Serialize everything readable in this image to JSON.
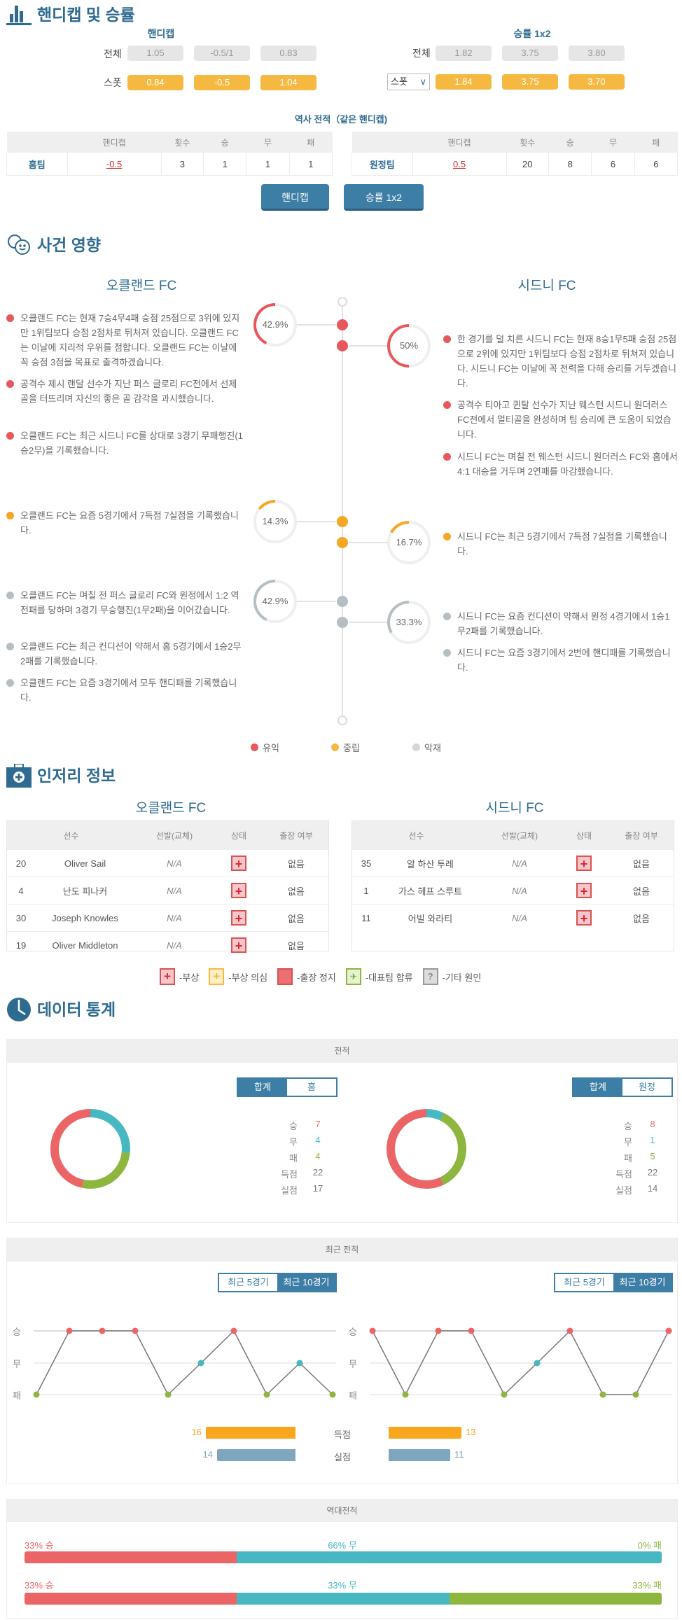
{
  "colors": {
    "accent": "#3d7ea6",
    "title": "#2e6b91",
    "positive": "#e8575a",
    "neutral": "#f5a623",
    "negative": "#b5bfc3",
    "win": "#ec6566",
    "draw": "#47b7c1",
    "loss": "#8db63e",
    "goals": "#f9a61f",
    "conceded": "#7ea7bf"
  },
  "handicap_section": {
    "title": "핸디캡 및 승률",
    "handicap": {
      "title": "핸디캡",
      "rows": [
        {
          "label": "전체",
          "values": [
            "1.05",
            "-0.5/1",
            "0.83"
          ]
        },
        {
          "label": "스폿",
          "values": [
            "0.84",
            "-0.5",
            "1.04"
          ]
        }
      ]
    },
    "odds": {
      "title": "승률 1x2",
      "rows": [
        {
          "label": "전체",
          "values": [
            "1.82",
            "3.75",
            "3.80"
          ]
        },
        {
          "label": "스폿",
          "values": [
            "1.84",
            "3.75",
            "3.70"
          ]
        }
      ]
    },
    "history": {
      "title": "역사 전적（같은 핸디캡)",
      "headers": [
        "",
        "핸디캡",
        "횟수",
        "승",
        "무",
        "패"
      ],
      "home": [
        "홈팀",
        "-0.5",
        "3",
        "1",
        "1",
        "1"
      ],
      "away": [
        "원정팀",
        "0.5",
        "20",
        "8",
        "6",
        "6"
      ]
    },
    "buttons": [
      "핸디캡",
      "승률 1x2"
    ]
  },
  "impact": {
    "title": "사건 영향",
    "home_team": "오클랜드 FC",
    "away_team": "시드니 FC",
    "groups": [
      {
        "type": "positive",
        "home": {
          "pct": "42.9%",
          "value": 0.429,
          "items": [
            "오클랜드 FC는 현재 7승4무4패 승점 25점으로 3위에 있지만 1위팀보다 승점 2점차로 뒤처져 있습니다. 오클랜드 FC는 이날에 지리적 우위를 점합니다. 오클랜드 FC는 이날에 꼭 승점 3점을 목표로 출격하겠습니다.",
            "공격수 제시 랜달 선수가 지난 퍼스 글로리 FC전에서 선제골을 터뜨리며 자신의 좋은 골 감각을 과시했습니다.",
            "오클랜드 FC는 최근 시드니 FC를 상대로 3경기 무패행진(1승2무)을 기록했습니다."
          ]
        },
        "away": {
          "pct": "50%",
          "value": 0.5,
          "items": [
            "한 경기를 덜 치른 시드니 FC는 현재 8승1무5패 승점 25점으로 2위에 있지만 1위팀보다 승점 2점차로 뒤쳐져 있습니다. 시드니 FC는 이날에 꼭 전력을 다해 승리를 거두겠습니다.",
            "공격수 티아고 퀸탈 선수가 지난 웨스턴 시드니 원더러스 FC전에서 멀티골을 완성하며 팀 승리에 큰 도움이 되었습니다.",
            "시드니 FC는 며칠 전 웨스턴 시드니 원더러스 FC와 홈에서 4:1 대승을 거두며 2연패를 마감했습니다."
          ]
        }
      },
      {
        "type": "neutral",
        "home": {
          "pct": "14.3%",
          "value": 0.143,
          "items": [
            "오클랜드 FC는 요즘 5경기에서 7득점 7실점을 기록했습니다."
          ]
        },
        "away": {
          "pct": "16.7%",
          "value": 0.167,
          "items": [
            "시드니 FC는 최근 5경기에서 7득점 7실점을 기록했습니다."
          ]
        }
      },
      {
        "type": "negative",
        "home": {
          "pct": "42.9%",
          "value": 0.429,
          "items": [
            "오클랜드 FC는 며칠 전 퍼스 글로리 FC와 원정에서 1:2 역전패를 당하며 3경기 무승행진(1무2패)을 이어갔습니다.",
            "오클랜드 FC는 최근 컨디션이 약해서 홈 5경기에서 1승2무2패를 기록했습니다.",
            "오클랜드 FC는 요즘 3경기에서 모두 핸디패를 기록했습니다."
          ]
        },
        "away": {
          "pct": "33.3%",
          "value": 0.333,
          "items": [
            "시드니 FC는 요즘 컨디션이 약해서 원정 4경기에서 1승1무2패를 기록했습니다.",
            "시드니 FC는 요즘 3경기에서 2번에 핸디패를 기록했습니다."
          ]
        }
      }
    ],
    "legend": [
      "유익",
      "중립",
      "악재"
    ]
  },
  "injury": {
    "title": "인저리 정보",
    "headers": [
      "선수",
      "선발(교체)",
      "상태",
      "출장 여부"
    ],
    "home": {
      "team": "오클랜드 FC",
      "players": [
        {
          "no": "20",
          "name": "Oliver Sail",
          "start": "N/A",
          "status": "부상",
          "play": "없음"
        },
        {
          "no": "4",
          "name": "난도 피나커",
          "start": "N/A",
          "status": "부상",
          "play": "없음"
        },
        {
          "no": "30",
          "name": "Joseph Knowles",
          "start": "N/A",
          "status": "부상",
          "play": "없음"
        },
        {
          "no": "19",
          "name": "Oliver Middleton",
          "start": "N/A",
          "status": "부상",
          "play": "없음"
        }
      ]
    },
    "away": {
      "team": "시드니 FC",
      "players": [
        {
          "no": "35",
          "name": "알 하산 투레",
          "start": "N/A",
          "status": "부상",
          "play": "없음"
        },
        {
          "no": "1",
          "name": "가스 헤프 스루트",
          "start": "N/A",
          "status": "부상",
          "play": "없음"
        },
        {
          "no": "11",
          "name": "어빌 와라티",
          "start": "N/A",
          "status": "부상",
          "play": "없음"
        }
      ]
    },
    "legend": [
      {
        "icon": "injury-icon",
        "label": "-부상"
      },
      {
        "icon": "doubtful-icon",
        "label": "-부상 의심"
      },
      {
        "icon": "suspension-icon",
        "label": "-출장 정지"
      },
      {
        "icon": "national-team-icon",
        "label": "-대표팀 합류"
      },
      {
        "icon": "other-reason-icon",
        "label": "-기타 원인"
      }
    ]
  },
  "stats": {
    "title": "데이터 통계",
    "record": {
      "title": "전적",
      "home": {
        "toggle": [
          "합계",
          "홈"
        ],
        "active": 0,
        "rows": [
          [
            "승",
            "7"
          ],
          [
            "무",
            "4"
          ],
          [
            "패",
            "4"
          ],
          [
            "득점",
            "22"
          ],
          [
            "실점",
            "17"
          ]
        ],
        "w": 7,
        "d": 4,
        "l": 4
      },
      "away": {
        "toggle": [
          "합계",
          "원정"
        ],
        "active": 0,
        "rows": [
          [
            "승",
            "8"
          ],
          [
            "무",
            "1"
          ],
          [
            "패",
            "5"
          ],
          [
            "득점",
            "22"
          ],
          [
            "실점",
            "14"
          ]
        ],
        "w": 8,
        "d": 1,
        "l": 5
      }
    },
    "recent": {
      "title": "최근 전적",
      "toggle": [
        "최근 5경기",
        "최근 10경기"
      ],
      "active": 1,
      "y_labels": [
        "승",
        "무",
        "패"
      ],
      "home_results": [
        "L",
        "W",
        "W",
        "W",
        "L",
        "D",
        "W",
        "L",
        "D",
        "L"
      ],
      "away_results": [
        "W",
        "L",
        "W",
        "W",
        "L",
        "D",
        "W",
        "L",
        "L",
        "W"
      ],
      "bars": [
        {
          "label": "득점",
          "home": 16,
          "away": 13
        },
        {
          "label": "실점",
          "home": 14,
          "away": 11
        }
      ]
    },
    "h2h": {
      "title": "역대전적",
      "rows": [
        {
          "win": 33,
          "draw": 66,
          "loss": 0,
          "labels": [
            "33% 승",
            "66% 무",
            "0% 패"
          ]
        },
        {
          "win": 33,
          "draw": 33,
          "loss": 33,
          "labels": [
            "33% 승",
            "33% 무",
            "33% 패"
          ]
        }
      ]
    }
  }
}
